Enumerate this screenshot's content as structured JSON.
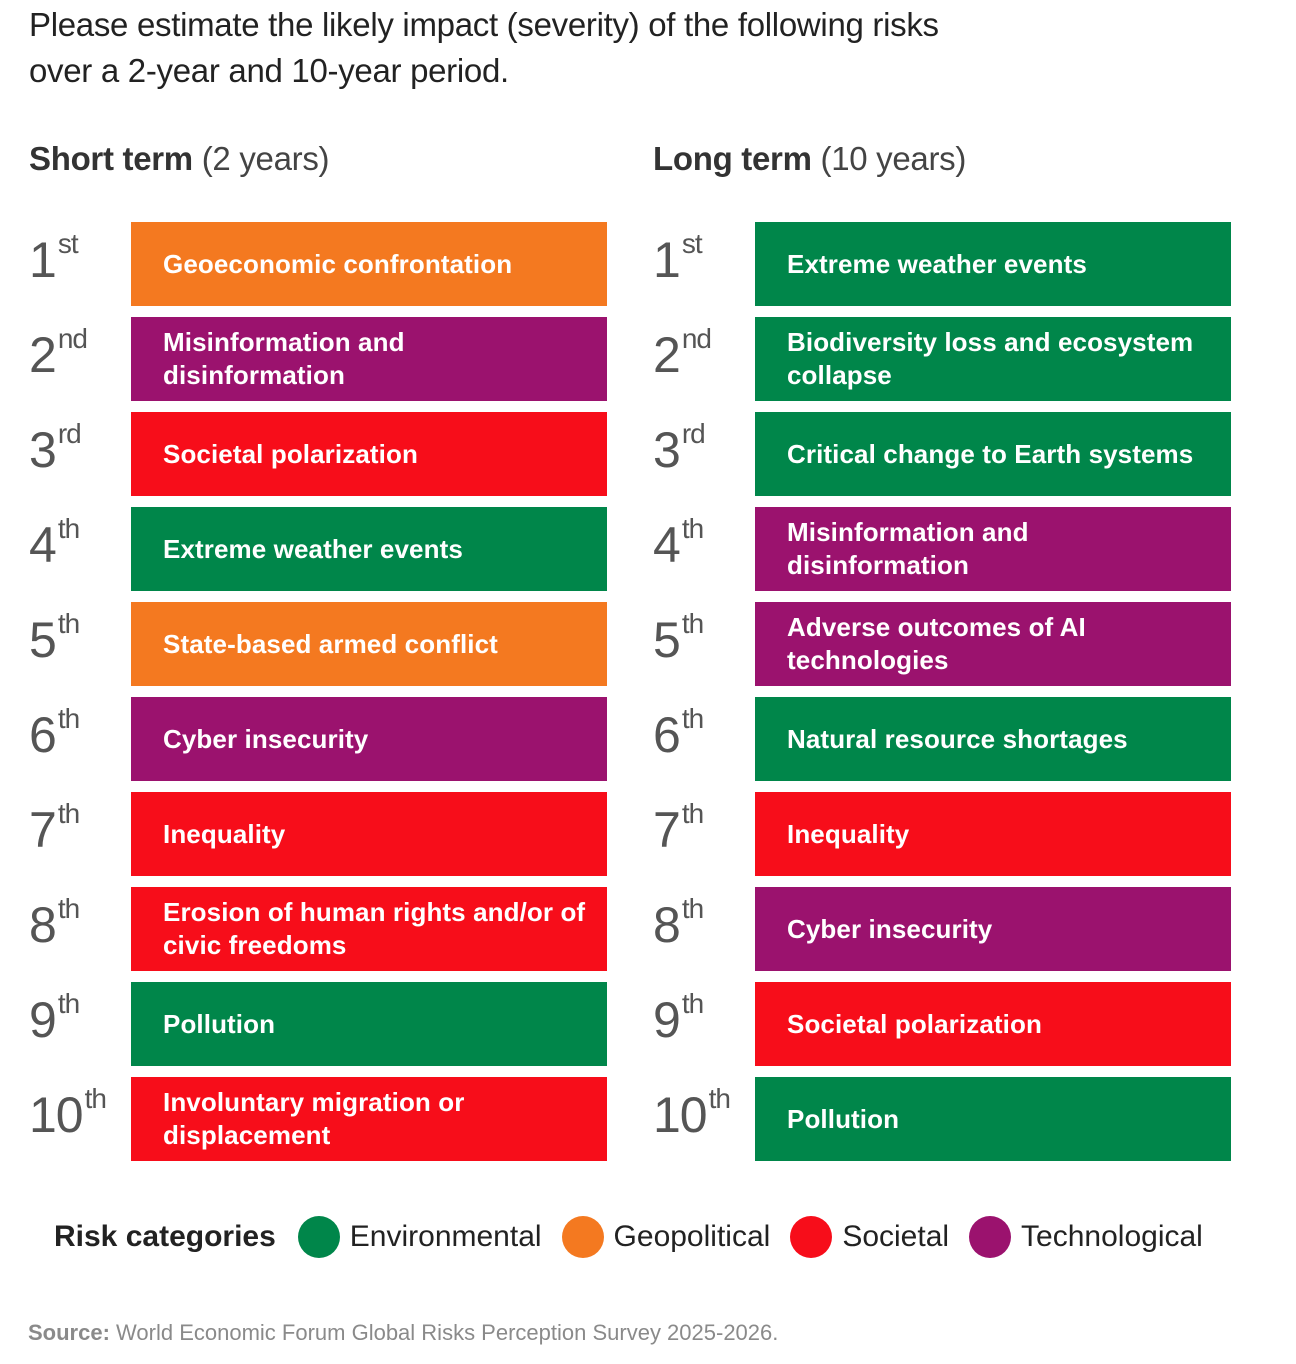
{
  "intro": "Please estimate the likely impact (severity) of the following risks over a 2-year and 10-year period.",
  "chart_data": {
    "type": "table",
    "title": "Please estimate the likely impact (severity) of the following risks over a 2-year and 10-year period.",
    "categories": {
      "Environmental": "#00864a",
      "Geopolitical": "#f47920",
      "Societal": "#f70d1a",
      "Technological": "#9b126e"
    },
    "columns": [
      {
        "id": "short",
        "title_bold": "Short term",
        "title_sub": "(2 years)",
        "rows": [
          {
            "rank": "1",
            "suffix": "st",
            "risk": "Geoeconomic confrontation",
            "category": "Geopolitical"
          },
          {
            "rank": "2",
            "suffix": "nd",
            "risk": "Misinformation and disinformation",
            "category": "Technological"
          },
          {
            "rank": "3",
            "suffix": "rd",
            "risk": "Societal polarization",
            "category": "Societal"
          },
          {
            "rank": "4",
            "suffix": "th",
            "risk": "Extreme weather events",
            "category": "Environmental"
          },
          {
            "rank": "5",
            "suffix": "th",
            "risk": "State-based armed conflict",
            "category": "Geopolitical"
          },
          {
            "rank": "6",
            "suffix": "th",
            "risk": "Cyber insecurity",
            "category": "Technological"
          },
          {
            "rank": "7",
            "suffix": "th",
            "risk": "Inequality",
            "category": "Societal"
          },
          {
            "rank": "8",
            "suffix": "th",
            "risk": "Erosion of human rights and/or of civic freedoms",
            "category": "Societal"
          },
          {
            "rank": "9",
            "suffix": "th",
            "risk": "Pollution",
            "category": "Environmental"
          },
          {
            "rank": "10",
            "suffix": "th",
            "risk": "Involuntary migration or displacement",
            "category": "Societal"
          }
        ]
      },
      {
        "id": "long",
        "title_bold": "Long term",
        "title_sub": "(10 years)",
        "rows": [
          {
            "rank": "1",
            "suffix": "st",
            "risk": "Extreme weather events",
            "category": "Environmental"
          },
          {
            "rank": "2",
            "suffix": "nd",
            "risk": "Biodiversity loss and ecosystem collapse",
            "category": "Environmental"
          },
          {
            "rank": "3",
            "suffix": "rd",
            "risk": "Critical change to Earth systems",
            "category": "Environmental"
          },
          {
            "rank": "4",
            "suffix": "th",
            "risk": "Misinformation and disinformation",
            "category": "Technological"
          },
          {
            "rank": "5",
            "suffix": "th",
            "risk": "Adverse outcomes of AI technologies",
            "category": "Technological"
          },
          {
            "rank": "6",
            "suffix": "th",
            "risk": "Natural resource shortages",
            "category": "Environmental"
          },
          {
            "rank": "7",
            "suffix": "th",
            "risk": "Inequality",
            "category": "Societal"
          },
          {
            "rank": "8",
            "suffix": "th",
            "risk": "Cyber insecurity",
            "category": "Technological"
          },
          {
            "rank": "9",
            "suffix": "th",
            "risk": "Societal polarization",
            "category": "Societal"
          },
          {
            "rank": "10",
            "suffix": "th",
            "risk": "Pollution",
            "category": "Environmental"
          }
        ]
      }
    ],
    "legend": {
      "title": "Risk categories",
      "items": [
        "Environmental",
        "Geopolitical",
        "Societal",
        "Technological"
      ],
      "placement": "bottom"
    }
  },
  "source_label": "Source:",
  "source_text": "World Economic Forum Global Risks Perception Survey 2025-2026."
}
